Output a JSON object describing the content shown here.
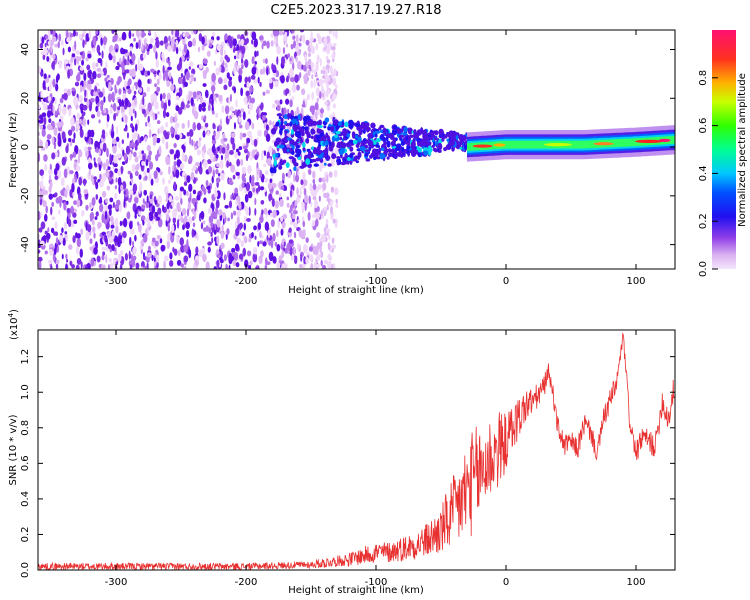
{
  "title": "C2E5.2023.317.19.27.R18",
  "chart_data": [
    {
      "type": "heatmap",
      "name": "spectrogram",
      "xlabel": "Height of straight line (km)",
      "ylabel": "Frequency (Hz)",
      "xlim": [
        -360,
        130
      ],
      "ylim": [
        -50,
        48
      ],
      "xticks": [
        -300,
        -200,
        -100,
        0,
        100
      ],
      "yticks": [
        -40,
        -20,
        0,
        20,
        40
      ],
      "colorbar": {
        "label": "Normalized spectral amplitude",
        "range": [
          0.0,
          1.0
        ],
        "ticks": [
          "0.0",
          "0.2",
          "0.4",
          "0.6",
          "0.8"
        ],
        "colormap": [
          "#f0d0f8",
          "#a050e0",
          "#6010e0",
          "#0000e8",
          "#00c8ff",
          "#00ff80",
          "#c0ff00",
          "#ffa000",
          "#ff2020",
          "#ff1070"
        ]
      },
      "features": {
        "noise_region_x": [
          -360,
          -130
        ],
        "noise_faded_x": [
          -175,
          -130
        ],
        "scattered_band_x": [
          -180,
          -30
        ],
        "tone_x": [
          -30,
          130
        ],
        "tone_center_hz": [
          [
            -30,
            0
          ],
          [
            0,
            1
          ],
          [
            60,
            1
          ],
          [
            100,
            2
          ],
          [
            130,
            3
          ]
        ],
        "tone_peak_amplitude": 0.9
      }
    },
    {
      "type": "line",
      "name": "snr",
      "xlabel": "Height of straight line (km)",
      "ylabel": "SNR (10 * v/v)",
      "y_multiplier": "(x10",
      "y_multiplier_exp": "4",
      "y_multiplier_close": ")",
      "xlim": [
        -360,
        130
      ],
      "ylim": [
        0,
        1.35
      ],
      "xticks": [
        -300,
        -200,
        -100,
        0,
        100
      ],
      "yticks": [
        "0.0",
        "0.2",
        "0.4",
        "0.6",
        "0.8",
        "1.0",
        "1.2"
      ],
      "color": "#e83030",
      "series": [
        {
          "name": "SNR",
          "x": [
            -360,
            -300,
            -200,
            -150,
            -140,
            -130,
            -120,
            -110,
            -100,
            -90,
            -80,
            -70,
            -60,
            -50,
            -45,
            -40,
            -35,
            -30,
            -25,
            -20,
            -15,
            -10,
            -5,
            0,
            5,
            10,
            15,
            20,
            25,
            30,
            33,
            36,
            40,
            45,
            50,
            55,
            60,
            65,
            70,
            75,
            80,
            85,
            88,
            90,
            92,
            95,
            100,
            105,
            110,
            115,
            120,
            125,
            130
          ],
          "y": [
            0.02,
            0.02,
            0.02,
            0.03,
            0.04,
            0.05,
            0.06,
            0.08,
            0.1,
            0.1,
            0.12,
            0.14,
            0.17,
            0.22,
            0.28,
            0.32,
            0.38,
            0.45,
            0.5,
            0.55,
            0.6,
            0.65,
            0.68,
            0.72,
            0.8,
            0.86,
            0.92,
            0.95,
            0.98,
            1.05,
            1.12,
            1.0,
            0.8,
            0.7,
            0.72,
            0.68,
            0.82,
            0.78,
            0.65,
            0.85,
            0.95,
            1.05,
            1.2,
            1.32,
            1.15,
            0.85,
            0.65,
            0.75,
            0.72,
            0.7,
            0.95,
            0.85,
            1.05
          ],
          "noise_amplitude": [
            0.02,
            0.02,
            0.02,
            0.02,
            0.03,
            0.03,
            0.04,
            0.05,
            0.06,
            0.06,
            0.07,
            0.08,
            0.1,
            0.14,
            0.18,
            0.22,
            0.25,
            0.28,
            0.3,
            0.28,
            0.26,
            0.24,
            0.22,
            0.16,
            0.14,
            0.12,
            0.1,
            0.08,
            0.07,
            0.06,
            0.05,
            0.05,
            0.06,
            0.06,
            0.06,
            0.06,
            0.07,
            0.06,
            0.05,
            0.06,
            0.07,
            0.06,
            0.04,
            0.03,
            0.05,
            0.06,
            0.06,
            0.06,
            0.07,
            0.07,
            0.08,
            0.08,
            0.08
          ]
        }
      ]
    }
  ]
}
